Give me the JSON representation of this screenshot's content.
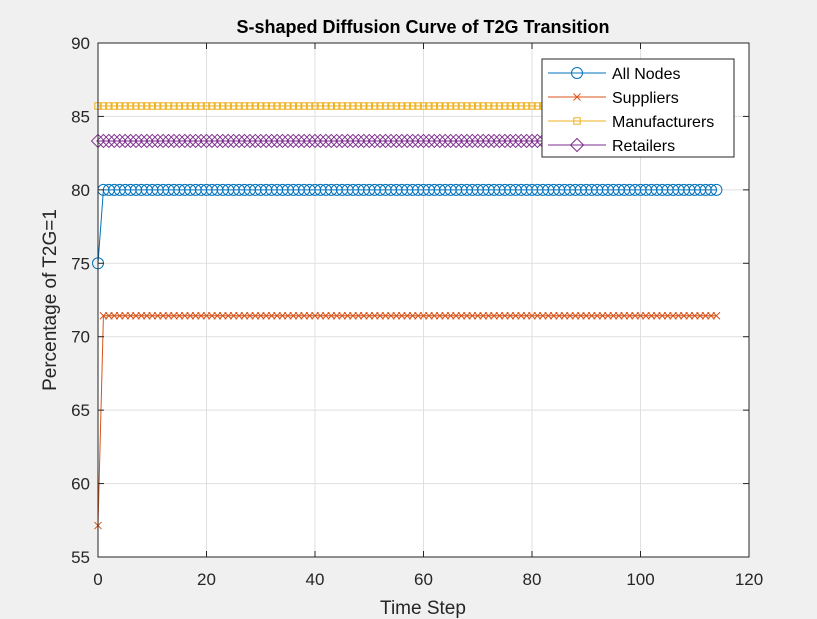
{
  "figure": {
    "background": "#f0f0f0",
    "axes_background": "#ffffff"
  },
  "chart_data": {
    "type": "line",
    "title": "S-shaped Diffusion Curve of T2G Transition",
    "xlabel": "Time Step",
    "ylabel": "Percentage of T2G=1",
    "xlim": [
      0,
      120
    ],
    "ylim": [
      55,
      90
    ],
    "xticks": [
      0,
      20,
      40,
      60,
      80,
      100,
      120
    ],
    "yticks": [
      55,
      60,
      65,
      70,
      75,
      80,
      85,
      90
    ],
    "grid": true,
    "legend_position": "top-right",
    "x_range": [
      0,
      114
    ],
    "series": [
      {
        "name": "All Nodes",
        "marker": "circle",
        "color": "#0072bd",
        "initial": 75.0,
        "steady": 80.0
      },
      {
        "name": "Suppliers",
        "marker": "x",
        "color": "#d95319",
        "initial": 57.14,
        "steady": 71.43
      },
      {
        "name": "Manufacturers",
        "marker": "square",
        "color": "#edb120",
        "initial": 85.71,
        "steady": 85.71
      },
      {
        "name": "Retailers",
        "marker": "diamond",
        "color": "#7e2f8e",
        "initial": 83.33,
        "steady": 83.33
      }
    ]
  }
}
